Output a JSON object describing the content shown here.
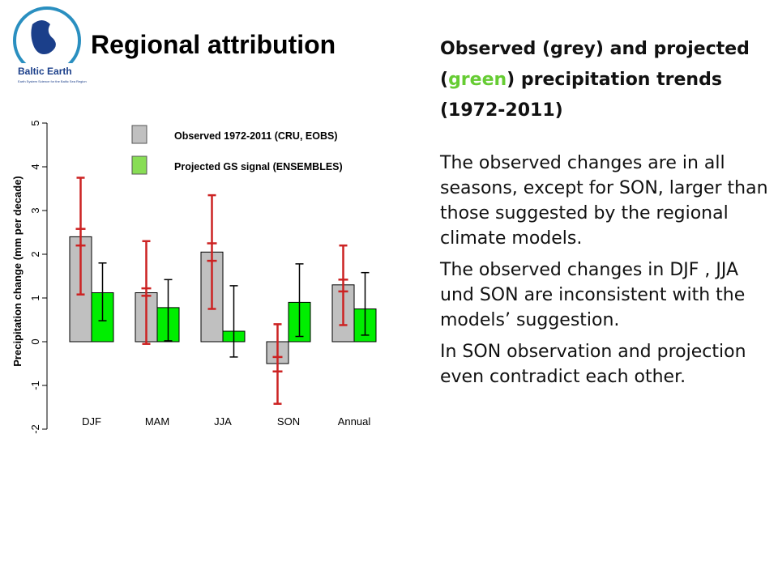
{
  "slide": {
    "title": "Regional attribution",
    "logo_text": "Baltic Earth",
    "logo_tagline": "Earth System Science for the Baltic Sea Region",
    "heading": [
      "Observed  (grey) and projected (",
      "green",
      ") precipitation trends (1972-2011)"
    ],
    "paragraphs": [
      "The observed changes are in all seasons, except for SON, larger than those suggested by the regional climate models.",
      "The observed changes in DJF , JJA und SON are inconsistent with the models’ suggestion.",
      "In SON observation and projection even contradict each other."
    ]
  },
  "chart_data": {
    "type": "bar",
    "ylabel": "Precipitation change (mm per decade)",
    "categories": [
      "DJF",
      "MAM",
      "JJA",
      "SON",
      "Annual"
    ],
    "series": [
      {
        "name": "Observed 1972-2011 (CRU, EOBS)",
        "color": "#c0c0c0",
        "error_color": "#cc2222",
        "values": [
          2.4,
          1.12,
          2.05,
          -0.5,
          1.3
        ],
        "err_low": [
          1.08,
          -0.05,
          0.75,
          -1.42,
          0.38
        ],
        "err_high": [
          3.75,
          2.3,
          3.35,
          0.4,
          2.2
        ],
        "inner_low": [
          2.2,
          1.05,
          1.85,
          -0.68,
          1.15
        ],
        "inner_high": [
          2.58,
          1.22,
          2.25,
          -0.35,
          1.42
        ]
      },
      {
        "name": "Projected GS signal  (ENSEMBLES)",
        "color": "#00ee00",
        "error_color": "#000000",
        "values": [
          1.12,
          0.78,
          0.24,
          0.9,
          0.75
        ],
        "err_low": [
          0.48,
          0.02,
          -0.35,
          0.12,
          0.15
        ],
        "err_high": [
          1.8,
          1.42,
          1.28,
          1.78,
          1.58
        ]
      }
    ],
    "ylim": [
      -2,
      5
    ],
    "yticks": [
      -2,
      -1,
      0,
      1,
      2,
      3,
      4,
      5
    ]
  }
}
